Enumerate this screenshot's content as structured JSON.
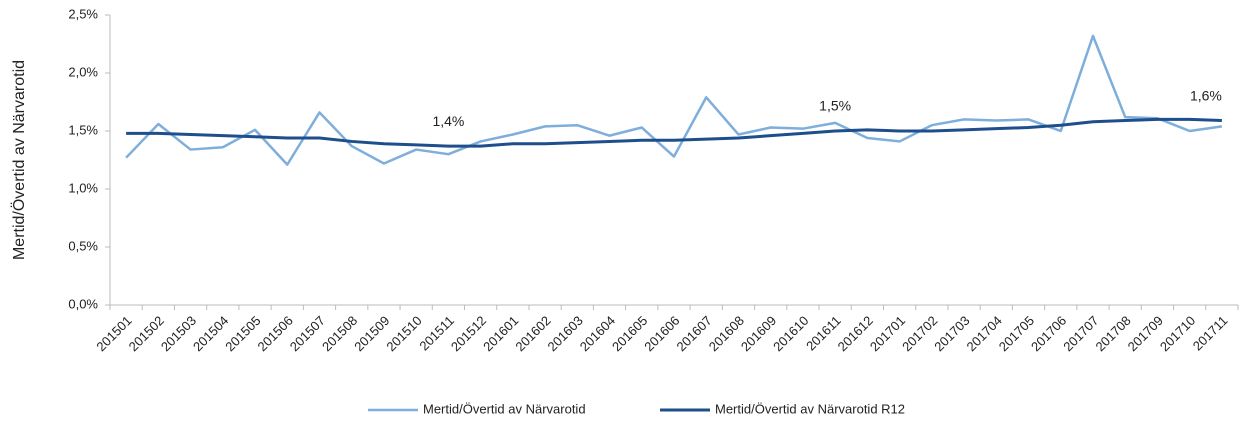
{
  "chart_data": {
    "type": "line",
    "categories": [
      "201501",
      "201502",
      "201503",
      "201504",
      "201505",
      "201506",
      "201507",
      "201508",
      "201509",
      "201510",
      "201511",
      "201512",
      "201601",
      "201602",
      "201603",
      "201604",
      "201605",
      "201606",
      "201607",
      "201608",
      "201609",
      "201610",
      "201611",
      "201612",
      "201701",
      "201702",
      "201703",
      "201704",
      "201705",
      "201706",
      "201707",
      "201708",
      "201709",
      "201710",
      "201711"
    ],
    "series": [
      {
        "name": "Mertid/Övertid av Närvarotid",
        "color": "#7eaedb",
        "values": [
          1.27,
          1.56,
          1.34,
          1.36,
          1.51,
          1.21,
          1.66,
          1.37,
          1.22,
          1.34,
          1.3,
          1.41,
          1.47,
          1.54,
          1.55,
          1.46,
          1.53,
          1.28,
          1.79,
          1.47,
          1.53,
          1.52,
          1.57,
          1.44,
          1.41,
          1.55,
          1.6,
          1.59,
          1.6,
          1.5,
          2.32,
          1.62,
          1.61,
          1.5,
          1.54
        ]
      },
      {
        "name": "Mertid/Övertid av Närvarotid R12",
        "color": "#1f4e8c",
        "values": [
          1.48,
          1.48,
          1.47,
          1.46,
          1.45,
          1.44,
          1.44,
          1.41,
          1.39,
          1.38,
          1.37,
          1.37,
          1.39,
          1.39,
          1.4,
          1.41,
          1.42,
          1.42,
          1.43,
          1.44,
          1.46,
          1.48,
          1.5,
          1.51,
          1.5,
          1.5,
          1.51,
          1.52,
          1.53,
          1.55,
          1.58,
          1.59,
          1.6,
          1.6,
          1.59
        ],
        "value_labels": [
          null,
          null,
          null,
          null,
          null,
          null,
          null,
          null,
          null,
          null,
          "1,4%",
          null,
          null,
          null,
          null,
          null,
          null,
          null,
          null,
          null,
          null,
          null,
          "1,5%",
          null,
          null,
          null,
          null,
          null,
          null,
          null,
          null,
          null,
          null,
          null,
          "1,6%"
        ]
      }
    ],
    "y_label": "Mertid/Övertid av Närvarotid",
    "ylim": [
      0,
      2.5
    ],
    "yticks": [
      {
        "value": 0,
        "label": "0,0%"
      },
      {
        "value": 0.5,
        "label": "0,5%"
      },
      {
        "value": 1,
        "label": "1,0%"
      },
      {
        "value": 1.5,
        "label": "1,5%"
      },
      {
        "value": 2,
        "label": "2,0%"
      },
      {
        "value": 2.5,
        "label": "2,5%"
      }
    ],
    "grid": false,
    "legend": "bottom"
  }
}
